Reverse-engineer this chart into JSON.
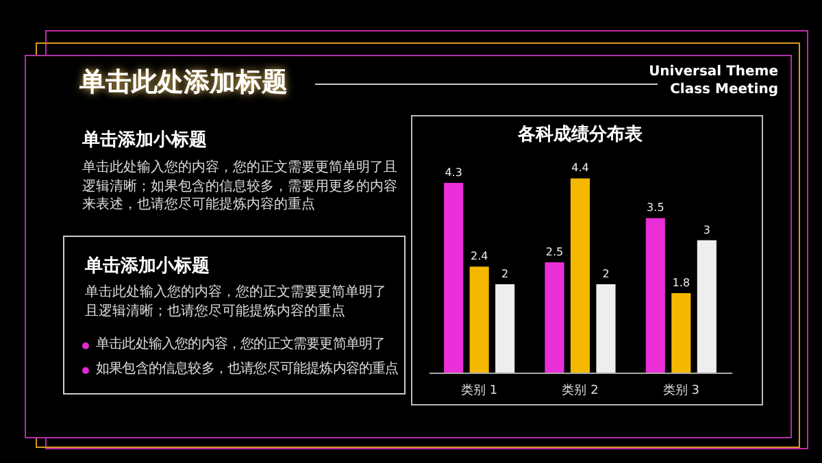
{
  "chart_data": {
    "type": "bar",
    "title": "各科成绩分布表",
    "categories": [
      "类别 1",
      "类别 2",
      "类别 3"
    ],
    "series": [
      {
        "color": "#e92fd8",
        "values": [
          4.3,
          2.5,
          3.5
        ]
      },
      {
        "color": "#f5b800",
        "values": [
          2.4,
          4.4,
          1.8
        ]
      },
      {
        "color": "#eeeeee",
        "values": [
          2,
          2,
          3
        ]
      }
    ],
    "data_labels": true,
    "annotations": [
      "单击此处添加标题",
      "Universal Theme",
      "Class Meeting",
      "单击添加小标题",
      "单击此处输入您的内容，您的正文需要更简单明了且逻辑清晰；如果包含的信息较多，需要用更多的内容来表述，也请您尽可能提炼内容的重点",
      "单击添加小标题",
      "单击此处输入您的内容，您的正文需要更简单明了且逻辑清晰；也请您尽可能提炼内容的重点",
      "单击此处输入您的内容，您的正文需要更简单明了",
      "如果包含的信息较多，也请您尽可能提炼内容的重点"
    ]
  }
}
